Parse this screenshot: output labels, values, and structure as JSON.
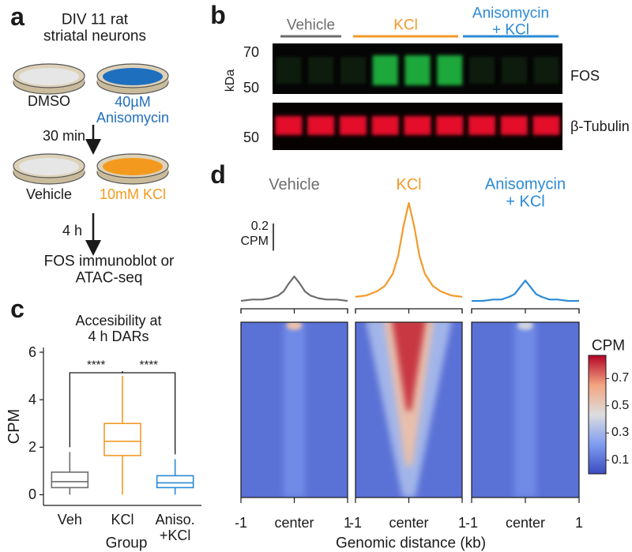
{
  "panel_a": {
    "label": "a",
    "title": "DIV 11 rat\nstriatal neurons",
    "dishes": [
      "DMSO",
      "40µM\nAnisomycin",
      "Vehicle",
      "10mM KCl"
    ],
    "dish_colors": [
      "#1a1a1a",
      "#1f6fbf",
      "#1a1a1a",
      "#f39a1e"
    ],
    "steps": [
      "30 min",
      "4 h"
    ],
    "readout": "FOS immunoblot or\nATAC-seq"
  },
  "panel_b": {
    "label": "b",
    "groups": [
      "Vehicle",
      "KCl",
      "Anisomycin\n+ KCl"
    ],
    "group_colors": [
      "#6d6d6d",
      "#f39a2a",
      "#2b8ad6"
    ],
    "unit": "kDa",
    "markers": [
      "70",
      "50",
      "50"
    ],
    "proteins": [
      "FOS",
      "β-Tubulin"
    ]
  },
  "chart_data": [
    {
      "type": "box",
      "panel": "c",
      "title": "Accesibility at\n4 h DARs",
      "categories": [
        "Veh",
        "KCl",
        "Aniso.\n+KCl"
      ],
      "colors": [
        "#6d6d6d",
        "#f39a2a",
        "#2b8ad6"
      ],
      "boxes": [
        {
          "low": 0,
          "q1": 0.3,
          "median": 0.55,
          "q3": 0.95,
          "high": 1.8
        },
        {
          "low": 0,
          "q1": 1.65,
          "median": 2.25,
          "q3": 3.0,
          "high": 5.0
        },
        {
          "low": 0,
          "q1": 0.3,
          "median": 0.5,
          "q3": 0.8,
          "high": 1.5
        }
      ],
      "significance": [
        "****",
        "****"
      ],
      "xlabel": "Group",
      "ylabel": "CPM",
      "ylim": [
        -0.45,
        6.2
      ],
      "yticks": [
        0,
        2,
        4,
        6
      ]
    },
    {
      "type": "line",
      "panel": "d",
      "x": [
        -1,
        -0.8,
        -0.6,
        -0.45,
        -0.3,
        -0.2,
        -0.1,
        0,
        0.1,
        0.2,
        0.3,
        0.45,
        0.6,
        0.8,
        1
      ],
      "series": [
        {
          "name": "Vehicle",
          "color": "#6d6d6d",
          "values": [
            0.11,
            0.12,
            0.12,
            0.13,
            0.15,
            0.18,
            0.24,
            0.29,
            0.24,
            0.18,
            0.15,
            0.13,
            0.12,
            0.12,
            0.11
          ]
        },
        {
          "name": "KCl",
          "color": "#f39a2a",
          "values": [
            0.14,
            0.15,
            0.18,
            0.22,
            0.31,
            0.44,
            0.66,
            0.83,
            0.66,
            0.44,
            0.31,
            0.22,
            0.18,
            0.15,
            0.14
          ]
        },
        {
          "name": "Anisomycin\n+ KCl",
          "color": "#2b8ad6",
          "values": [
            0.11,
            0.11,
            0.12,
            0.12,
            0.14,
            0.16,
            0.21,
            0.26,
            0.21,
            0.16,
            0.14,
            0.12,
            0.12,
            0.11,
            0.11
          ]
        }
      ],
      "xlim": [
        -1,
        1
      ],
      "xticks": [
        -1,
        {
          "value": 0,
          "label": "center"
        },
        1
      ],
      "ylim": [
        0,
        0.9
      ],
      "scale_bar": 0.2,
      "scale_bar_unit": "CPM",
      "xlabel": "Genomic distance (kb)",
      "colorbar": {
        "label": "CPM",
        "lim": [
          0,
          0.87
        ],
        "ticks": [
          0.1,
          0.3,
          0.5,
          0.7
        ],
        "colors": [
          "#3b4cc0",
          "#7f9df0",
          "#dcdddd",
          "#f3a481",
          "#b40426"
        ]
      }
    }
  ]
}
